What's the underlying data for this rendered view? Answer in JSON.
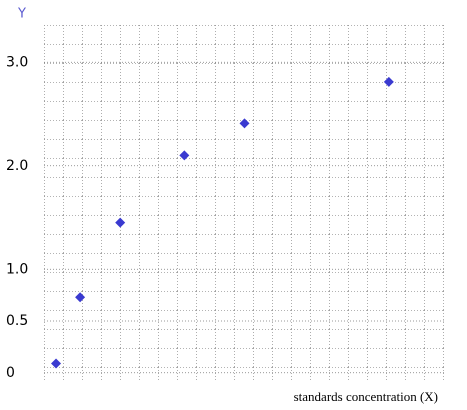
{
  "chart_data": {
    "type": "scatter",
    "y_label": "Y",
    "x_label": "standards concentration (X)",
    "x": [
      0.3,
      0.9,
      1.9,
      3.5,
      5.0,
      8.6
    ],
    "values": [
      0.09,
      0.73,
      1.45,
      2.1,
      2.41,
      2.81
    ],
    "color": "#3a3ad0",
    "xlim": [
      0,
      10
    ],
    "ylim": [
      -0.07,
      3.36
    ],
    "yticks": [
      0,
      0.5,
      {
        "value": 1,
        "label": "1.0"
      },
      {
        "value": 2,
        "label": "2.0"
      },
      {
        "value": 3,
        "label": "3.0"
      }
    ],
    "grid": true
  }
}
